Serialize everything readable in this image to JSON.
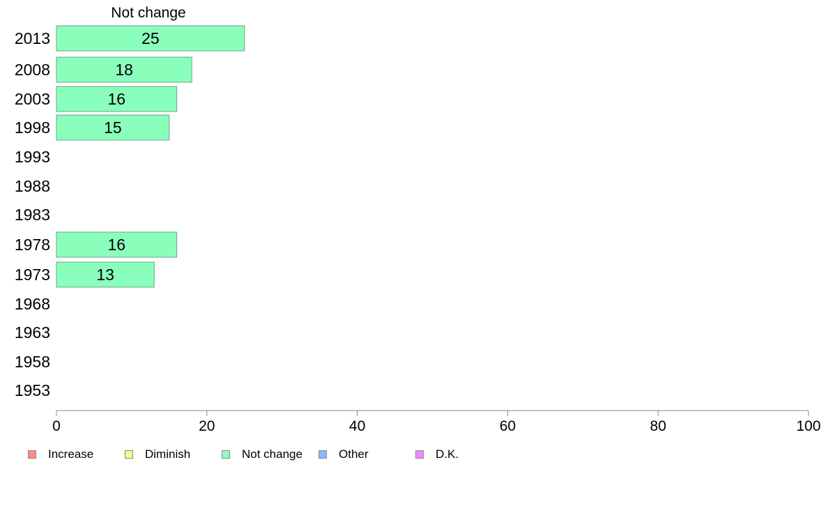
{
  "chart_data": {
    "type": "bar",
    "orientation": "horizontal",
    "title": "Not change",
    "categories": [
      "2013",
      "2008",
      "2003",
      "1998",
      "1993",
      "1988",
      "1983",
      "1978",
      "1973",
      "1968",
      "1963",
      "1958",
      "1953"
    ],
    "series": [
      {
        "name": "Not change",
        "color": "#8affbc",
        "values": [
          25,
          18,
          16,
          15,
          null,
          null,
          null,
          16,
          13,
          null,
          null,
          null,
          null
        ]
      }
    ],
    "data_labels": [
      "25",
      "18",
      "16",
      "15",
      "",
      "",
      "",
      "16",
      "13",
      "",
      "",
      "",
      ""
    ],
    "xlim": [
      0,
      100
    ],
    "xticks": [
      0,
      20,
      40,
      60,
      80,
      100
    ],
    "xlabel": "",
    "ylabel": "",
    "grid": false,
    "legend_position": "bottom-left",
    "legend": [
      {
        "label": "Increase",
        "color": "#ff8a8a"
      },
      {
        "label": "Diminish",
        "color": "#eeff8a"
      },
      {
        "label": "Not change",
        "color": "#8affbc"
      },
      {
        "label": "Other",
        "color": "#8ab8ff"
      },
      {
        "label": "D.K.",
        "color": "#ee8aff"
      }
    ]
  }
}
